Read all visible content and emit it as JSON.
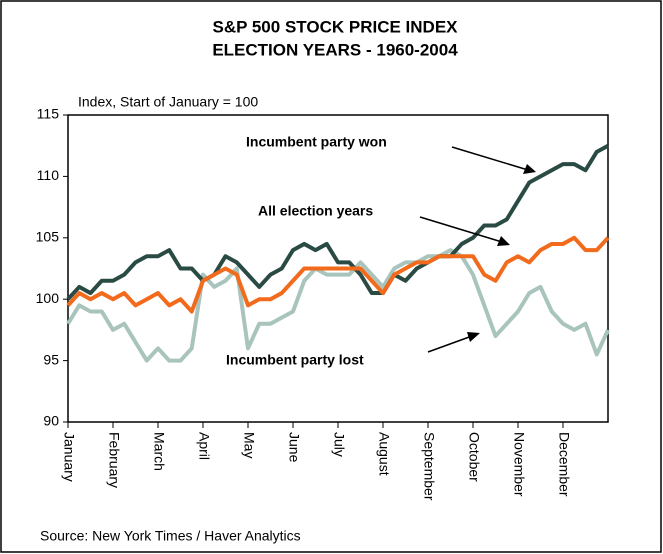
{
  "chart_data": {
    "type": "line",
    "title": [
      "S&P 500 STOCK PRICE INDEX",
      "ELECTION YEARS - 1960-2004"
    ],
    "y_label": "Index, Start of January = 100",
    "source": "Source: New York Times / Haver Analytics",
    "annotations": [
      "Incumbent party won",
      "All election years",
      "Incumbent party lost"
    ],
    "xlim": [
      0,
      12
    ],
    "xticks": [
      {
        "value": 0,
        "label": "January"
      },
      {
        "value": 1,
        "label": "February"
      },
      {
        "value": 2,
        "label": "March"
      },
      {
        "value": 3,
        "label": "April"
      },
      {
        "value": 4,
        "label": "May"
      },
      {
        "value": 5,
        "label": "June"
      },
      {
        "value": 6,
        "label": "July"
      },
      {
        "value": 7,
        "label": "August"
      },
      {
        "value": 8,
        "label": "September"
      },
      {
        "value": 9,
        "label": "October"
      },
      {
        "value": 10,
        "label": "November"
      },
      {
        "value": 11,
        "label": "December"
      }
    ],
    "ylim": [
      90,
      115
    ],
    "yticks": [
      90,
      95,
      100,
      105,
      110,
      115
    ],
    "x": [
      0,
      0.25,
      0.5,
      0.75,
      1,
      1.25,
      1.5,
      1.75,
      2,
      2.25,
      2.5,
      2.75,
      3,
      3.25,
      3.5,
      3.75,
      4,
      4.25,
      4.5,
      4.75,
      5,
      5.25,
      5.5,
      5.75,
      6,
      6.25,
      6.5,
      6.75,
      7,
      7.25,
      7.5,
      7.75,
      8,
      8.25,
      8.5,
      8.75,
      9,
      9.25,
      9.5,
      9.75,
      10,
      10.25,
      10.5,
      10.75,
      11,
      11.25,
      11.5,
      11.75,
      12
    ],
    "series": [
      {
        "name": "Incumbent party lost",
        "color": "#a8c4bc",
        "values": [
          98,
          99.5,
          99,
          99,
          97.5,
          98,
          96.5,
          95,
          96,
          95,
          95,
          96,
          102,
          101,
          101.5,
          102.5,
          96,
          98,
          98,
          98.5,
          99,
          101.5,
          102.5,
          102,
          102,
          102,
          103,
          102,
          101,
          102.5,
          103,
          103,
          103.5,
          103.5,
          104,
          103.5,
          102,
          99.5,
          97,
          98,
          99,
          100.5,
          101,
          99,
          98,
          97.5,
          98,
          95.5,
          97.5
        ]
      },
      {
        "name": "Incumbent party won",
        "color": "#2a4a44",
        "values": [
          100,
          101,
          100.5,
          101.5,
          101.5,
          102,
          103,
          103.5,
          103.5,
          104,
          102.5,
          102.5,
          101.5,
          102,
          103.5,
          103,
          102,
          101,
          102,
          102.5,
          104,
          104.5,
          104,
          104.5,
          103,
          103,
          102,
          100.5,
          100.5,
          102,
          101.5,
          102.5,
          103,
          103.5,
          103.5,
          104.5,
          105,
          106,
          106,
          106.5,
          108,
          109.5,
          110,
          110.5,
          111,
          111,
          110.5,
          112,
          112.5
        ]
      },
      {
        "name": "All election years",
        "color": "#f26a1b",
        "values": [
          99.5,
          100.5,
          100,
          100.5,
          100,
          100.5,
          99.5,
          100,
          100.5,
          99.5,
          100,
          99,
          101.5,
          102,
          102.5,
          102,
          99.5,
          100,
          100,
          100.5,
          101.5,
          102.5,
          102.5,
          102.5,
          102.5,
          102.5,
          102.5,
          101.5,
          100.5,
          102,
          102.5,
          103,
          103,
          103.5,
          103.5,
          103.5,
          103.5,
          102,
          101.5,
          103,
          103.5,
          103,
          104,
          104.5,
          104.5,
          105,
          104,
          104,
          105
        ]
      }
    ]
  }
}
